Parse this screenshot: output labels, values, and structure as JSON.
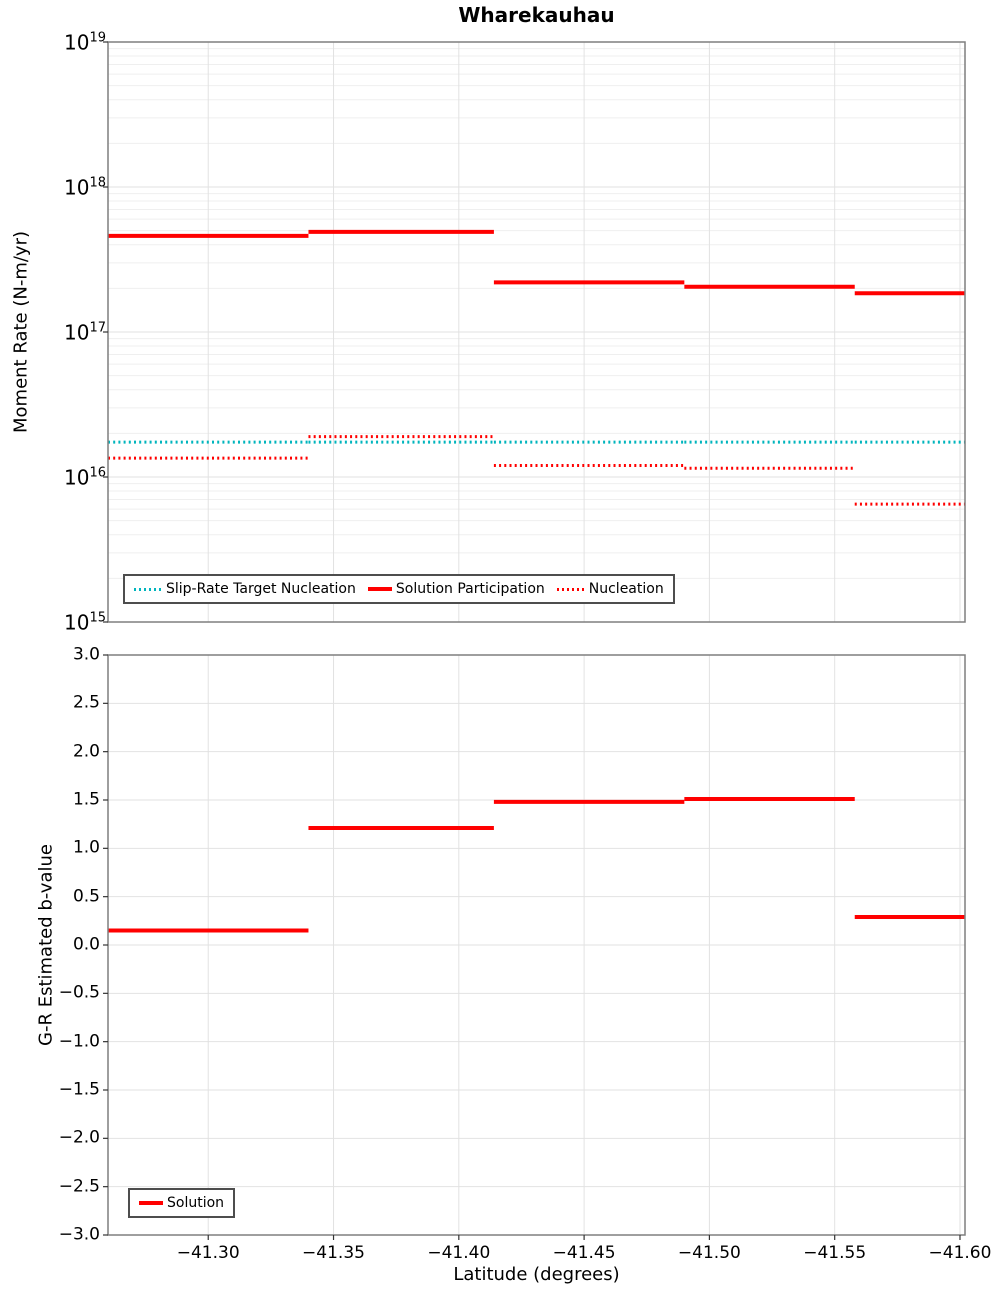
{
  "figure": {
    "title": "Wharekauhau",
    "background": "#ffffff",
    "grid_major_color": "#e2e2e2",
    "grid_minor_color": "#efefef",
    "spine_color": "#7f7f7f",
    "tick_color": "#333333"
  },
  "chart_data": [
    {
      "type": "line",
      "subtype": "step-segments",
      "title": "Wharekauhau",
      "ylabel": "Moment Rate (N-m/yr)",
      "yscale": "log",
      "ylim": [
        1000000000000000.0,
        1e+19
      ],
      "y_tick_base": "10",
      "y_tick_exponents": [
        19,
        18,
        17,
        16,
        15
      ],
      "xlim": [
        -41.26,
        -41.602
      ],
      "x_edges": [
        -41.26,
        -41.34,
        -41.414,
        -41.49,
        -41.558,
        -41.602
      ],
      "grid": true,
      "legend_position": "lower-left-inside",
      "series": [
        {
          "name": "Slip-Rate Target Nucleation",
          "color": "#00b5bd",
          "style": "dotted",
          "values": [
            1.74e+16,
            1.74e+16,
            1.74e+16,
            1.74e+16,
            1.74e+16
          ]
        },
        {
          "name": "Solution Participation",
          "color": "#ff0000",
          "style": "solid",
          "values": [
            4.6e+17,
            4.9e+17,
            2.2e+17,
            2.05e+17,
            1.85e+17
          ]
        },
        {
          "name": "Nucleation",
          "color": "#ff0000",
          "style": "dotted",
          "values": [
            1.35e+16,
            1.9e+16,
            1.2e+16,
            1.15e+16,
            6500000000000000.0
          ]
        }
      ]
    },
    {
      "type": "line",
      "subtype": "step-segments",
      "ylabel": "G-R Estimated b-value",
      "xlabel": "Latitude (degrees)",
      "ylim": [
        -3,
        3
      ],
      "y_tick_labels": [
        "3.0",
        "2.5",
        "2.0",
        "1.5",
        "1.0",
        "0.5",
        "0.0",
        "−0.5",
        "−1.0",
        "−1.5",
        "−2.0",
        "−2.5",
        "−3.0"
      ],
      "y_tick_values": [
        3.0,
        2.5,
        2.0,
        1.5,
        1.0,
        0.5,
        0.0,
        -0.5,
        -1.0,
        -1.5,
        -2.0,
        -2.5,
        -3.0
      ],
      "x_tick_labels": [
        "−41.30",
        "−41.35",
        "−41.40",
        "−41.45",
        "−41.50",
        "−41.55",
        "−41.60"
      ],
      "x_tick_values": [
        -41.3,
        -41.35,
        -41.4,
        -41.45,
        -41.5,
        -41.55,
        -41.6
      ],
      "xlim": [
        -41.26,
        -41.602
      ],
      "x_edges": [
        -41.26,
        -41.34,
        -41.414,
        -41.49,
        -41.558,
        -41.602
      ],
      "grid": true,
      "legend_position": "lower-left-inside",
      "series": [
        {
          "name": "Solution",
          "color": "#ff0000",
          "style": "solid",
          "values": [
            0.15,
            1.21,
            1.48,
            1.51,
            0.29
          ]
        }
      ]
    }
  ]
}
